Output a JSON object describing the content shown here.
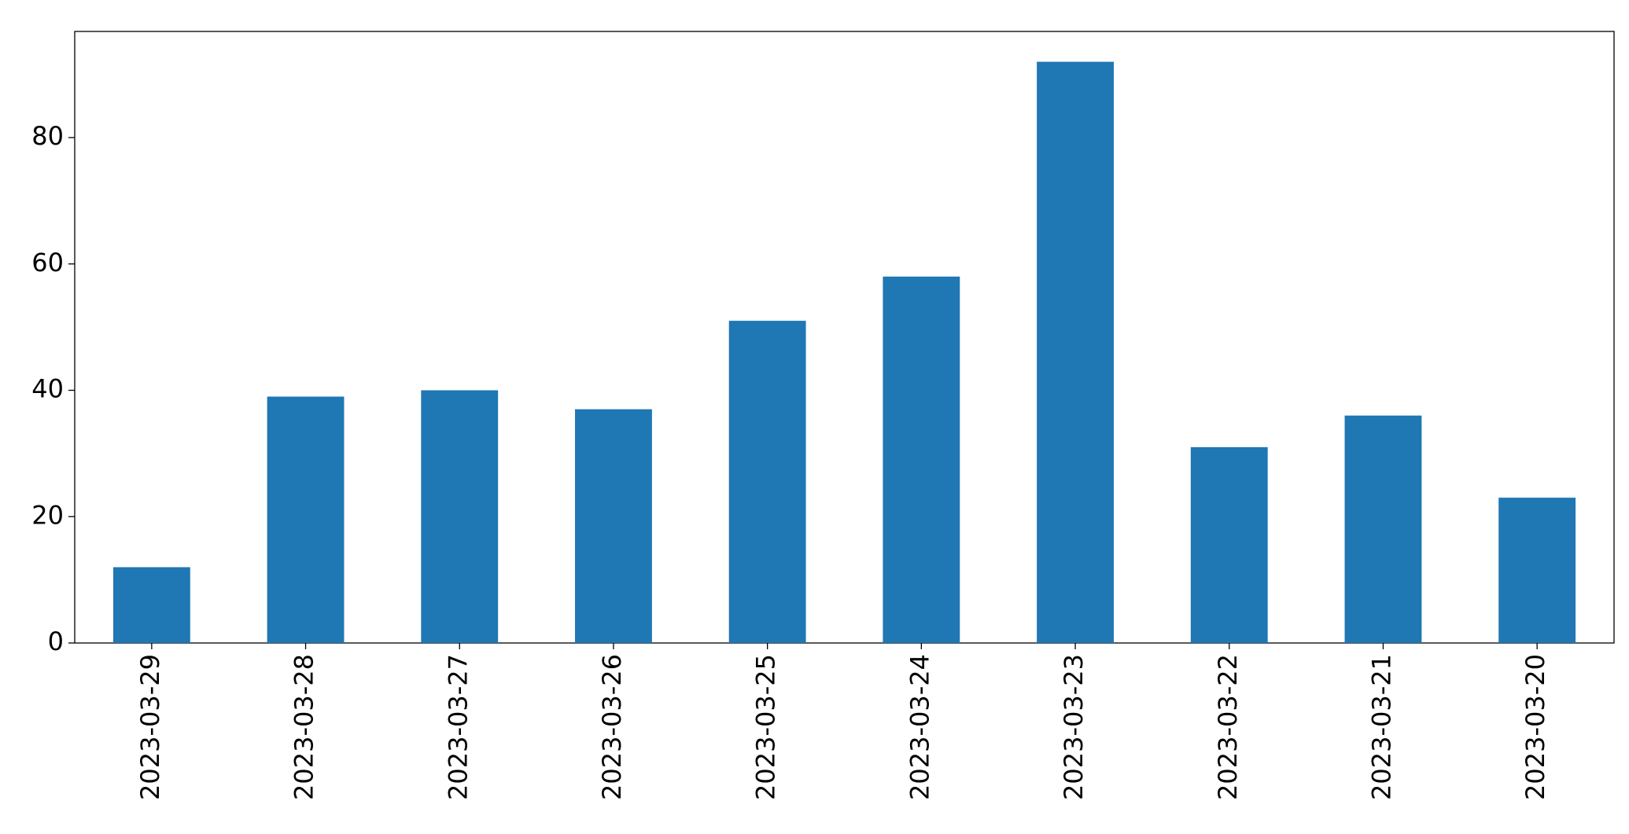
{
  "chart_data": {
    "type": "bar",
    "categories": [
      "2023-03-29",
      "2023-03-28",
      "2023-03-27",
      "2023-03-26",
      "2023-03-25",
      "2023-03-24",
      "2023-03-23",
      "2023-03-22",
      "2023-03-21",
      "2023-03-20"
    ],
    "values": [
      12,
      39,
      40,
      37,
      51,
      58,
      92,
      31,
      36,
      23
    ],
    "color": "#1f77b4",
    "ylim": [
      0,
      96.8
    ],
    "yticks": [
      0,
      20,
      40,
      60,
      80
    ],
    "grid": false
  }
}
